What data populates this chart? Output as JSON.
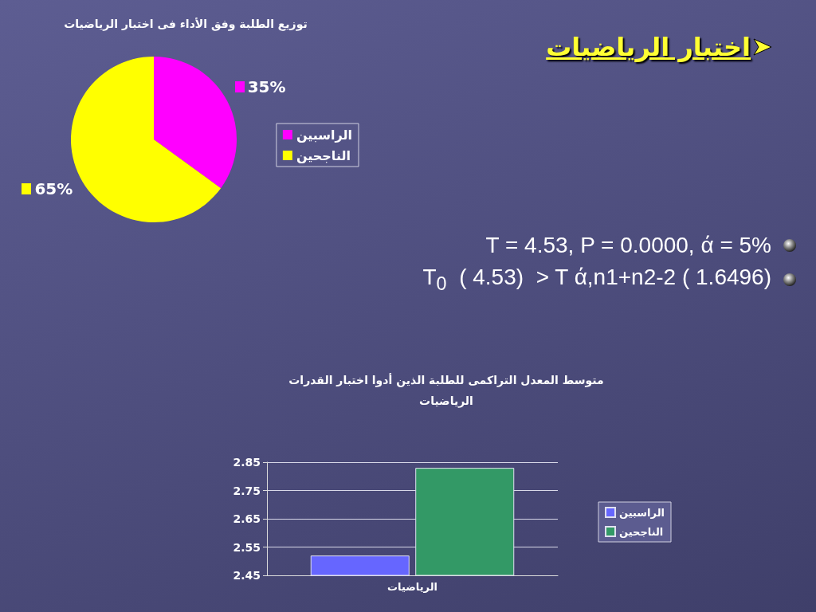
{
  "chart_data": [
    {
      "type": "other",
      "title": "اختبار الرياضيات",
      "annotations": [
        "T = 4.53, P = 0.0000, ά = 5%",
        "T$_{0}$  ( 4.53)  > T ά,n1+n2-2 ( 1.6496)"
      ]
    },
    {
      "type": "pie",
      "title": "توزيع الطلبة وفق الأداء فى اختبار الرياضيات",
      "categories": [
        "الراسبين",
        "الناجحين"
      ],
      "values": [
        35,
        65
      ],
      "colors": [
        "#ff00ff",
        "#ffff00"
      ],
      "value_labels": [
        "35%",
        "65%"
      ],
      "legend": "right"
    },
    {
      "type": "bar",
      "title": "متوسط المعدل التراكمى للطلبة الذين أدوا اختبار القدرات الرياضيات",
      "categories": [
        "الرياضيات"
      ],
      "series": [
        {
          "name": "الراسبين",
          "color": "#6666ff",
          "values": [
            2.52
          ]
        },
        {
          "name": "الناجحين",
          "color": "#339966",
          "values": [
            2.83
          ]
        }
      ],
      "ylim": [
        2.45,
        2.85
      ],
      "yticks": [
        2.45,
        2.55,
        2.65,
        2.75,
        2.85
      ],
      "grid": "y",
      "legend": "right"
    }
  ]
}
